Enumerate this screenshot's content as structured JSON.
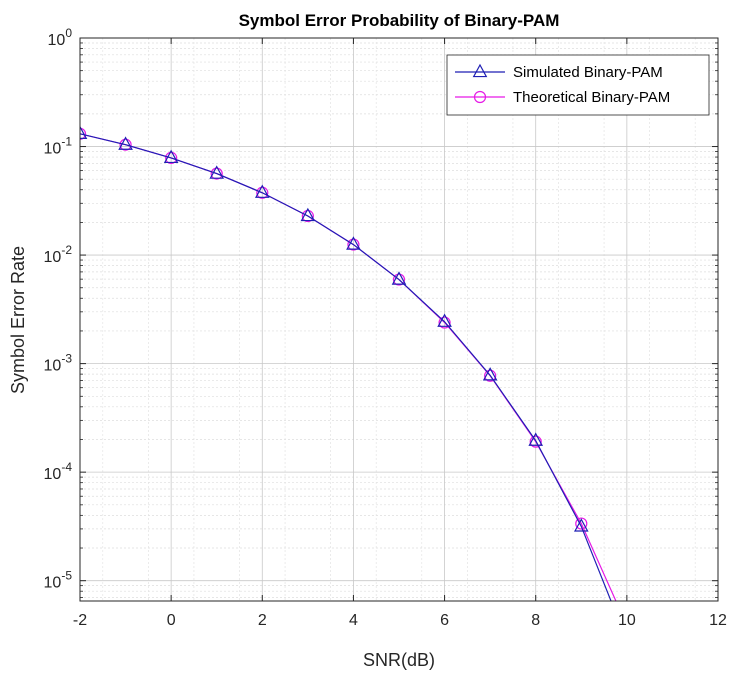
{
  "chart_data": {
    "type": "line",
    "title": "Symbol Error Probability of Binary-PAM",
    "xlabel": "SNR(dB)",
    "ylabel": "Symbol Error Rate",
    "xlim": [
      -2,
      12
    ],
    "ylim": [
      6.5e-06,
      1
    ],
    "yscale": "log",
    "grid": true,
    "minor_grid": true,
    "legend_position": "top-right",
    "x_ticks": [
      {
        "value": -2,
        "label": "-2"
      },
      {
        "value": 0,
        "label": "0"
      },
      {
        "value": 2,
        "label": "2"
      },
      {
        "value": 4,
        "label": "4"
      },
      {
        "value": 6,
        "label": "6"
      },
      {
        "value": 8,
        "label": "8"
      },
      {
        "value": 10,
        "label": "10"
      },
      {
        "value": 12,
        "label": "12"
      }
    ],
    "y_ticks": [
      {
        "value": 1,
        "base": "10",
        "exp": "0"
      },
      {
        "value": 0.1,
        "base": "10",
        "exp": "-1"
      },
      {
        "value": 0.01,
        "base": "10",
        "exp": "-2"
      },
      {
        "value": 0.001,
        "base": "10",
        "exp": "-3"
      },
      {
        "value": 0.0001,
        "base": "10",
        "exp": "-4"
      },
      {
        "value": 1e-05,
        "base": "10",
        "exp": "-5"
      }
    ],
    "series": [
      {
        "name": "Simulated Binary-PAM",
        "color": "#1f1fb4",
        "marker": "triangle",
        "x": [
          -2,
          -1,
          0,
          1,
          2,
          3,
          4,
          5,
          6,
          7,
          8,
          9,
          10
        ],
        "y": [
          0.131,
          0.104,
          0.0786,
          0.0563,
          0.0375,
          0.0229,
          0.0125,
          0.00595,
          0.00243,
          0.00078,
          0.000195,
          3.16e-05,
          2.8e-06
        ]
      },
      {
        "name": "Theoretical Binary-PAM",
        "color": "#e619e6",
        "marker": "circle",
        "x": [
          -2,
          -1,
          0,
          1,
          2,
          3,
          4,
          5,
          6,
          7,
          8,
          9,
          10
        ],
        "y": [
          0.131,
          0.104,
          0.0786,
          0.0563,
          0.0375,
          0.0229,
          0.0125,
          0.00595,
          0.00239,
          0.000773,
          0.000191,
          3.36e-05,
          3.87e-06
        ]
      }
    ]
  }
}
